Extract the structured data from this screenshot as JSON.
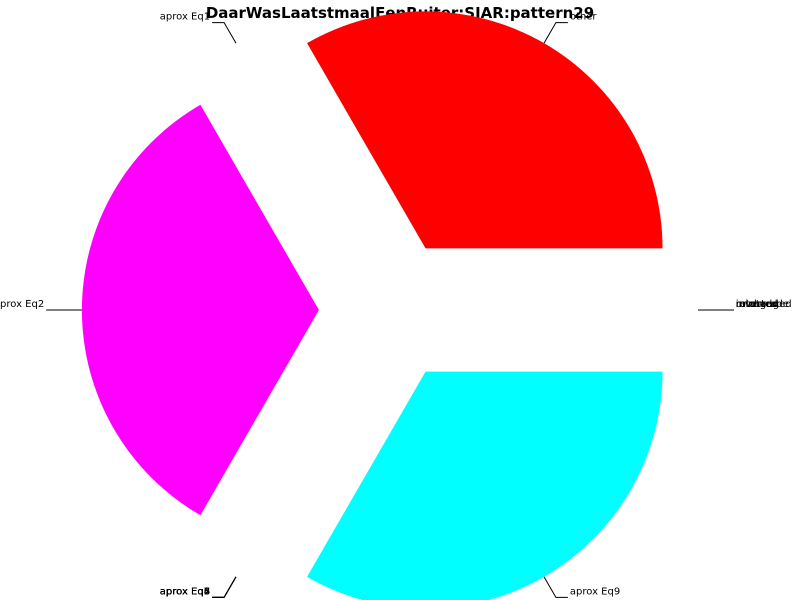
{
  "chart_data": {
    "type": "pie",
    "title": "DaarWasLaatstmaalEenRuiter:SIAR:pattern29",
    "slices": [
      {
        "label": "other",
        "value": 33.33,
        "color": "#ff0000",
        "exploded": true
      },
      {
        "label": "aprox Eq1",
        "value": 0,
        "color": "#ff0000",
        "exploded": true
      },
      {
        "label": "aprox Eq2",
        "value": 33.33,
        "color": "#ff00ff",
        "exploded": true
      },
      {
        "label": "aprox Eq3",
        "value": 0,
        "color": "#00ffff",
        "exploded": true
      },
      {
        "label": "aprox Eq4",
        "value": 0,
        "color": "#00ffff",
        "exploded": true
      },
      {
        "label": "aprox Eq5",
        "value": 0,
        "color": "#00ffff",
        "exploded": true
      },
      {
        "label": "aprox Eq6",
        "value": 0,
        "color": "#00ffff",
        "exploded": true
      },
      {
        "label": "aprox Eq7",
        "value": 0,
        "color": "#00ffff",
        "exploded": true
      },
      {
        "label": "aprox Eq8",
        "value": 0,
        "color": "#00ffff",
        "exploded": true
      },
      {
        "label": "aprox Eq9",
        "value": 33.33,
        "color": "#00ffff",
        "exploded": true
      },
      {
        "label": "unchanged",
        "value": 0,
        "color": "#00ffff",
        "exploded": true
      },
      {
        "label": "inverted",
        "value": 0,
        "color": "#00ffff",
        "exploded": true
      },
      {
        "label": "rotated",
        "value": 0,
        "color": "#00ffff",
        "exploded": true
      },
      {
        "label": "retrograde",
        "value": 0,
        "color": "#00ffff",
        "exploded": true
      },
      {
        "label": "mirrored",
        "value": 0,
        "color": "#00ffff",
        "exploded": true
      }
    ],
    "legend": "none",
    "grid": false
  }
}
